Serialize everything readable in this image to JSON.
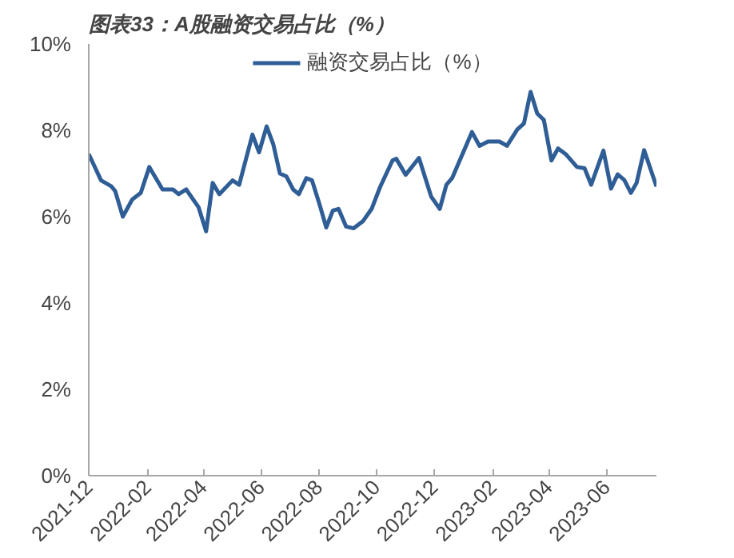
{
  "chart_data": {
    "type": "line",
    "title": "图表33：A股融资交易占比（%）",
    "x": [
      "2021-12-01",
      "2021-12-14",
      "2021-12-25",
      "2021-12-29",
      "2022-01-06",
      "2022-01-16",
      "2022-01-25",
      "2022-02-03",
      "2022-02-17",
      "2022-02-28",
      "2022-03-06",
      "2022-03-14",
      "2022-03-27",
      "2022-04-04",
      "2022-04-11",
      "2022-04-18",
      "2022-05-02",
      "2022-05-09",
      "2022-05-23",
      "2022-05-30",
      "2022-06-07",
      "2022-06-14",
      "2022-06-21",
      "2022-06-28",
      "2022-07-05",
      "2022-07-11",
      "2022-07-19",
      "2022-07-25",
      "2022-08-02",
      "2022-08-09",
      "2022-08-16",
      "2022-08-22",
      "2022-08-30",
      "2022-09-07",
      "2022-09-17",
      "2022-09-26",
      "2022-10-05",
      "2022-10-18",
      "2022-10-22",
      "2022-11-01",
      "2022-11-15",
      "2022-11-28",
      "2022-12-07",
      "2022-12-14",
      "2022-12-20",
      "2023-01-10",
      "2023-01-18",
      "2023-01-27",
      "2023-02-08",
      "2023-02-16",
      "2023-02-27",
      "2023-03-06",
      "2023-03-13",
      "2023-03-20",
      "2023-03-27",
      "2023-04-04",
      "2023-04-11",
      "2023-04-19",
      "2023-05-01",
      "2023-05-09",
      "2023-05-16",
      "2023-05-29",
      "2023-06-06",
      "2023-06-13",
      "2023-06-20",
      "2023-06-27",
      "2023-07-03",
      "2023-07-11",
      "2023-07-24"
    ],
    "series": [
      {
        "name": "融资交易占比（%）",
        "color": "#2f5d95",
        "values": [
          7.45,
          6.84,
          6.7,
          6.59,
          6.0,
          6.4,
          6.55,
          7.15,
          6.63,
          6.63,
          6.52,
          6.63,
          6.22,
          5.66,
          6.78,
          6.52,
          6.84,
          6.74,
          7.9,
          7.49,
          8.09,
          7.68,
          7.0,
          6.93,
          6.63,
          6.52,
          6.89,
          6.84,
          6.28,
          5.75,
          6.14,
          6.18,
          5.77,
          5.73,
          5.9,
          6.18,
          6.69,
          7.3,
          7.34,
          6.97,
          7.36,
          6.46,
          6.18,
          6.74,
          6.89,
          7.96,
          7.64,
          7.74,
          7.74,
          7.64,
          8.02,
          8.16,
          8.89,
          8.39,
          8.24,
          7.3,
          7.58,
          7.45,
          7.15,
          7.12,
          6.74,
          7.53,
          6.65,
          6.98,
          6.85,
          6.55,
          6.78,
          7.54,
          6.7
        ]
      }
    ],
    "xlim": [
      "2021-12-01",
      "2023-07-24"
    ],
    "xticks": [
      "2021-12",
      "2022-02",
      "2022-04",
      "2022-06",
      "2022-08",
      "2022-10",
      "2022-12",
      "2023-02",
      "2023-04",
      "2023-06"
    ],
    "ylim": [
      0,
      10
    ],
    "yticks": [
      {
        "value": 0,
        "label": "0%"
      },
      {
        "value": 2,
        "label": "2%"
      },
      {
        "value": 4,
        "label": "4%"
      },
      {
        "value": 6,
        "label": "6%"
      },
      {
        "value": 8,
        "label": "8%"
      },
      {
        "value": 10,
        "label": "10%"
      }
    ],
    "grid": false,
    "legend": "top",
    "marker": "none",
    "line_style": "solid"
  }
}
